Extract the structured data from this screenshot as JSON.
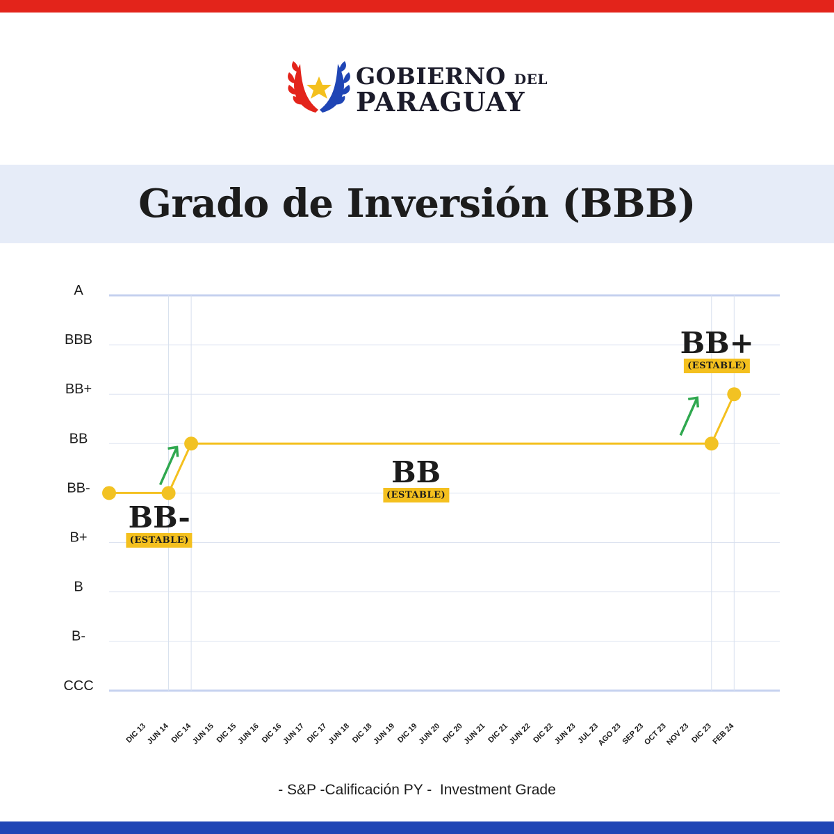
{
  "header": {
    "logo_line1_main": "GOBIERNO",
    "logo_line1_small": "DEL",
    "logo_line2": "PARAGUAY"
  },
  "title": "Grado de Inversión (BBB)",
  "colors": {
    "top_stripe": "#e3241b",
    "bottom_stripe": "#1f45b5",
    "series_line": "#f4c01e",
    "marker": "#f2c223",
    "arrow": "#2fa84f",
    "badge": "#f4c01e",
    "title_band": "#e6ecf8"
  },
  "chart_data": {
    "type": "line",
    "title": "Grado de Inversión (BBB)",
    "xlabel": "",
    "ylabel": "",
    "y_categories": [
      "CCC",
      "B-",
      "B",
      "B+",
      "BB-",
      "BB",
      "BB+",
      "BBB",
      "A"
    ],
    "x_categories": [
      "DIC 13",
      "JUN 14",
      "DIC 14",
      "JUN 15",
      "DIC 15",
      "JUN 16",
      "DIC 16",
      "JUN 17",
      "DIC 17",
      "JUN 18",
      "DIC 18",
      "JUN 19",
      "DIC 19",
      "JUN 20",
      "DIC 20",
      "JUN 21",
      "DIC 21",
      "JUN 22",
      "DIC 22",
      "JUN 23",
      "JUL 23",
      "AGO 23",
      "SEP 23",
      "OCT 23",
      "NOV 23",
      "DIC 23",
      "FEB 24"
    ],
    "series": [
      {
        "points": [
          {
            "x": "DIC 13",
            "y": "BB-"
          },
          {
            "x": "JUN 14",
            "y": "BB-"
          },
          {
            "x": "DIC 14",
            "y": "BB"
          },
          {
            "x": "DIC 23",
            "y": "BB"
          },
          {
            "x": "FEB 24",
            "y": "BB+"
          }
        ]
      }
    ],
    "annotations": [
      {
        "rating": "BB-",
        "outlook": "(ESTABLE)"
      },
      {
        "rating": "BB",
        "outlook": "(ESTABLE)"
      },
      {
        "rating": "BB+",
        "outlook": "(ESTABLE)"
      }
    ],
    "upgrade_arrows": [
      "JUN 14",
      "NOV 23"
    ],
    "grid": true,
    "legend": "none"
  },
  "footnote": "- S&P -Calificación PY -  Investment Grade"
}
